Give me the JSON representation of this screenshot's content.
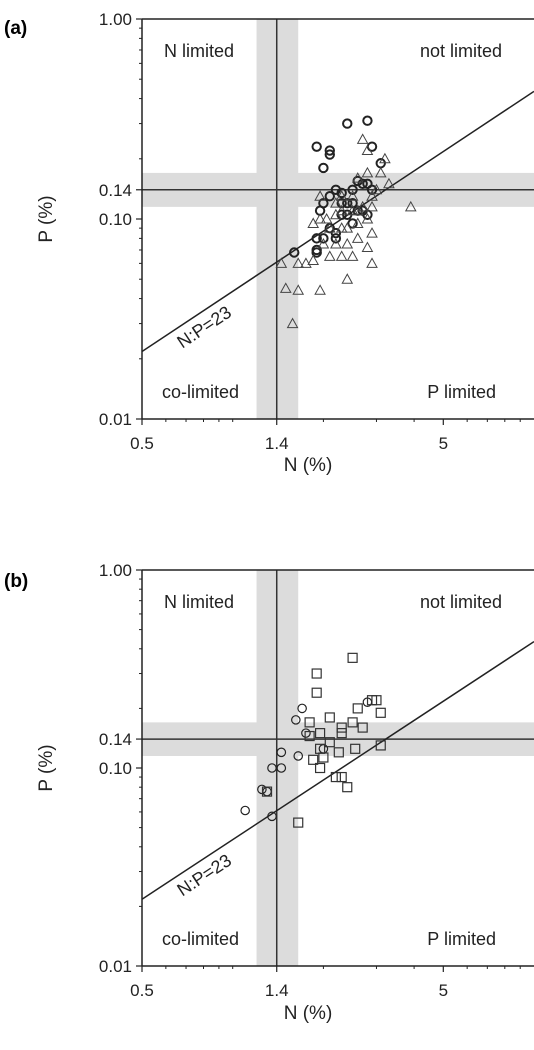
{
  "chart_data": [
    {
      "type": "scatter",
      "panel_label": "(a)",
      "xlabel": "N (%)",
      "ylabel": "P (%)",
      "xscale": "log",
      "yscale": "log",
      "xlim": [
        0.5,
        10
      ],
      "ylim": [
        0.01,
        1.0
      ],
      "x_ticks": [
        "0.5",
        "1.4",
        "5"
      ],
      "y_ticks": [
        "1.00",
        "0.14",
        "0.10",
        "0.01"
      ],
      "region_labels": [
        "N limited",
        "not limited",
        "co-limited",
        "P limited"
      ],
      "ratio_line_label": "N:P=23",
      "threshold_lines": {
        "N": 1.4,
        "P": 0.14,
        "N_band": [
          1.2,
          1.65
        ],
        "P_band": [
          0.115,
          0.17
        ]
      },
      "series": [
        {
          "marker": "circle",
          "points": [
            [
              2.4,
              0.3
            ],
            [
              2.8,
              0.31
            ],
            [
              1.9,
              0.23
            ],
            [
              2.1,
              0.22
            ],
            [
              2.1,
              0.21
            ],
            [
              2.9,
              0.23
            ],
            [
              3.1,
              0.19
            ],
            [
              2.0,
              0.18
            ],
            [
              2.6,
              0.155
            ],
            [
              2.7,
              0.15
            ],
            [
              2.8,
              0.15
            ],
            [
              2.9,
              0.14
            ],
            [
              2.2,
              0.14
            ],
            [
              2.1,
              0.13
            ],
            [
              2.3,
              0.135
            ],
            [
              2.5,
              0.14
            ],
            [
              2.0,
              0.12
            ],
            [
              2.3,
              0.12
            ],
            [
              2.4,
              0.12
            ],
            [
              2.5,
              0.12
            ],
            [
              1.95,
              0.11
            ],
            [
              2.3,
              0.105
            ],
            [
              2.4,
              0.105
            ],
            [
              2.6,
              0.11
            ],
            [
              2.7,
              0.11
            ],
            [
              2.8,
              0.105
            ],
            [
              2.1,
              0.09
            ],
            [
              2.2,
              0.085
            ],
            [
              2.0,
              0.08
            ],
            [
              1.9,
              0.08
            ],
            [
              1.9,
              0.07
            ],
            [
              1.6,
              0.068
            ],
            [
              1.9,
              0.068
            ],
            [
              2.2,
              0.08
            ],
            [
              2.5,
              0.095
            ]
          ]
        },
        {
          "marker": "triangle",
          "points": [
            [
              2.7,
              0.25
            ],
            [
              2.8,
              0.22
            ],
            [
              3.2,
              0.2
            ],
            [
              3.1,
              0.17
            ],
            [
              2.8,
              0.17
            ],
            [
              2.6,
              0.16
            ],
            [
              3.3,
              0.15
            ],
            [
              3.0,
              0.14
            ],
            [
              2.9,
              0.13
            ],
            [
              2.5,
              0.13
            ],
            [
              2.3,
              0.13
            ],
            [
              2.2,
              0.12
            ],
            [
              1.95,
              0.13
            ],
            [
              3.9,
              0.115
            ],
            [
              2.9,
              0.115
            ],
            [
              2.7,
              0.115
            ],
            [
              2.6,
              0.11
            ],
            [
              2.5,
              0.11
            ],
            [
              2.3,
              0.11
            ],
            [
              2.2,
              0.105
            ],
            [
              1.95,
              0.1
            ],
            [
              2.05,
              0.1
            ],
            [
              2.8,
              0.1
            ],
            [
              2.6,
              0.095
            ],
            [
              2.4,
              0.09
            ],
            [
              2.3,
              0.09
            ],
            [
              2.1,
              0.09
            ],
            [
              1.85,
              0.095
            ],
            [
              2.9,
              0.085
            ],
            [
              2.6,
              0.08
            ],
            [
              2.4,
              0.075
            ],
            [
              2.2,
              0.075
            ],
            [
              2.0,
              0.075
            ],
            [
              2.8,
              0.072
            ],
            [
              2.5,
              0.065
            ],
            [
              2.3,
              0.065
            ],
            [
              2.1,
              0.065
            ],
            [
              1.85,
              0.062
            ],
            [
              1.65,
              0.06
            ],
            [
              1.75,
              0.06
            ],
            [
              1.45,
              0.06
            ],
            [
              2.9,
              0.06
            ],
            [
              2.4,
              0.05
            ],
            [
              1.5,
              0.045
            ],
            [
              1.65,
              0.044
            ],
            [
              1.95,
              0.044
            ],
            [
              1.58,
              0.03
            ]
          ]
        }
      ]
    },
    {
      "type": "scatter",
      "panel_label": "(b)",
      "xlabel": "N (%)",
      "ylabel": "P (%)",
      "xscale": "log",
      "yscale": "log",
      "xlim": [
        0.5,
        10
      ],
      "ylim": [
        0.01,
        1.0
      ],
      "x_ticks": [
        "0.5",
        "1.4",
        "5"
      ],
      "y_ticks": [
        "1.00",
        "0.14",
        "0.10",
        "0.01"
      ],
      "region_labels": [
        "N limited",
        "not limited",
        "co-limited",
        "P limited"
      ],
      "ratio_line_label": "N:P=23",
      "threshold_lines": {
        "N": 1.4,
        "P": 0.14,
        "N_band": [
          1.2,
          1.65
        ],
        "P_band": [
          0.115,
          0.17
        ]
      },
      "series": [
        {
          "marker": "circle",
          "points": [
            [
              1.7,
              0.2
            ],
            [
              1.62,
              0.175
            ],
            [
              2.8,
              0.215
            ],
            [
              1.45,
              0.12
            ],
            [
              1.75,
              0.15
            ],
            [
              2.0,
              0.125
            ],
            [
              1.65,
              0.115
            ],
            [
              1.45,
              0.1
            ],
            [
              1.35,
              0.1
            ],
            [
              1.25,
              0.078
            ],
            [
              1.3,
              0.076
            ],
            [
              1.1,
              0.061
            ],
            [
              1.35,
              0.057
            ]
          ]
        },
        {
          "marker": "square",
          "points": [
            [
              2.5,
              0.36
            ],
            [
              1.9,
              0.3
            ],
            [
              1.9,
              0.24
            ],
            [
              2.9,
              0.22
            ],
            [
              3.0,
              0.22
            ],
            [
              3.1,
              0.19
            ],
            [
              2.6,
              0.2
            ],
            [
              2.1,
              0.18
            ],
            [
              2.5,
              0.17
            ],
            [
              1.8,
              0.17
            ],
            [
              2.3,
              0.16
            ],
            [
              2.7,
              0.16
            ],
            [
              2.3,
              0.15
            ],
            [
              1.95,
              0.15
            ],
            [
              1.8,
              0.145
            ],
            [
              3.1,
              0.13
            ],
            [
              2.1,
              0.135
            ],
            [
              2.55,
              0.125
            ],
            [
              1.95,
              0.125
            ],
            [
              2.25,
              0.12
            ],
            [
              2.0,
              0.113
            ],
            [
              1.85,
              0.11
            ],
            [
              1.95,
              0.1
            ],
            [
              2.2,
              0.09
            ],
            [
              2.3,
              0.09
            ],
            [
              2.4,
              0.08
            ],
            [
              1.3,
              0.076
            ],
            [
              1.65,
              0.053
            ]
          ]
        }
      ]
    }
  ]
}
